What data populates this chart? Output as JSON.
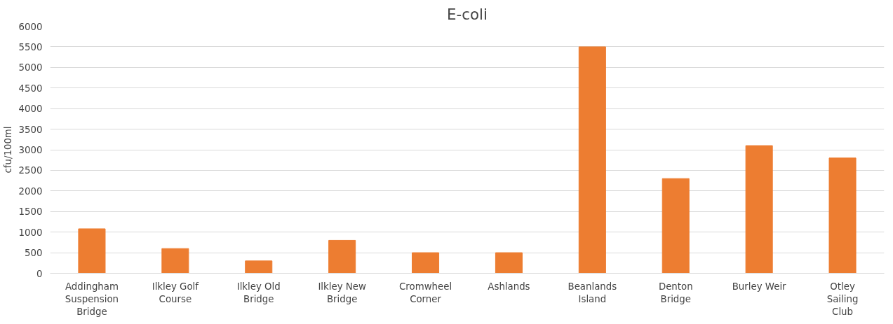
{
  "chart_data": {
    "type": "bar",
    "title": "E-coli",
    "ylabel": "cfu/100ml",
    "categories": [
      "Addingham Suspension Bridge",
      "Ilkley Golf Course",
      "Ilkley Old Bridge",
      "Ilkley New Bridge",
      "Cromwheel Corner",
      "Ashlands",
      "Beanlands Island",
      "Denton Bridge",
      "Burley Weir",
      "Otley Sailing Club"
    ],
    "values": [
      1080,
      600,
      300,
      800,
      500,
      500,
      5500,
      2300,
      3100,
      2800
    ],
    "color": "#ed7d31",
    "ylim": [
      0,
      6000
    ],
    "yticks": [
      0,
      500,
      1000,
      1500,
      2000,
      2500,
      3000,
      3500,
      4000,
      4500,
      5000,
      5500,
      6000
    ],
    "grid": "y"
  }
}
